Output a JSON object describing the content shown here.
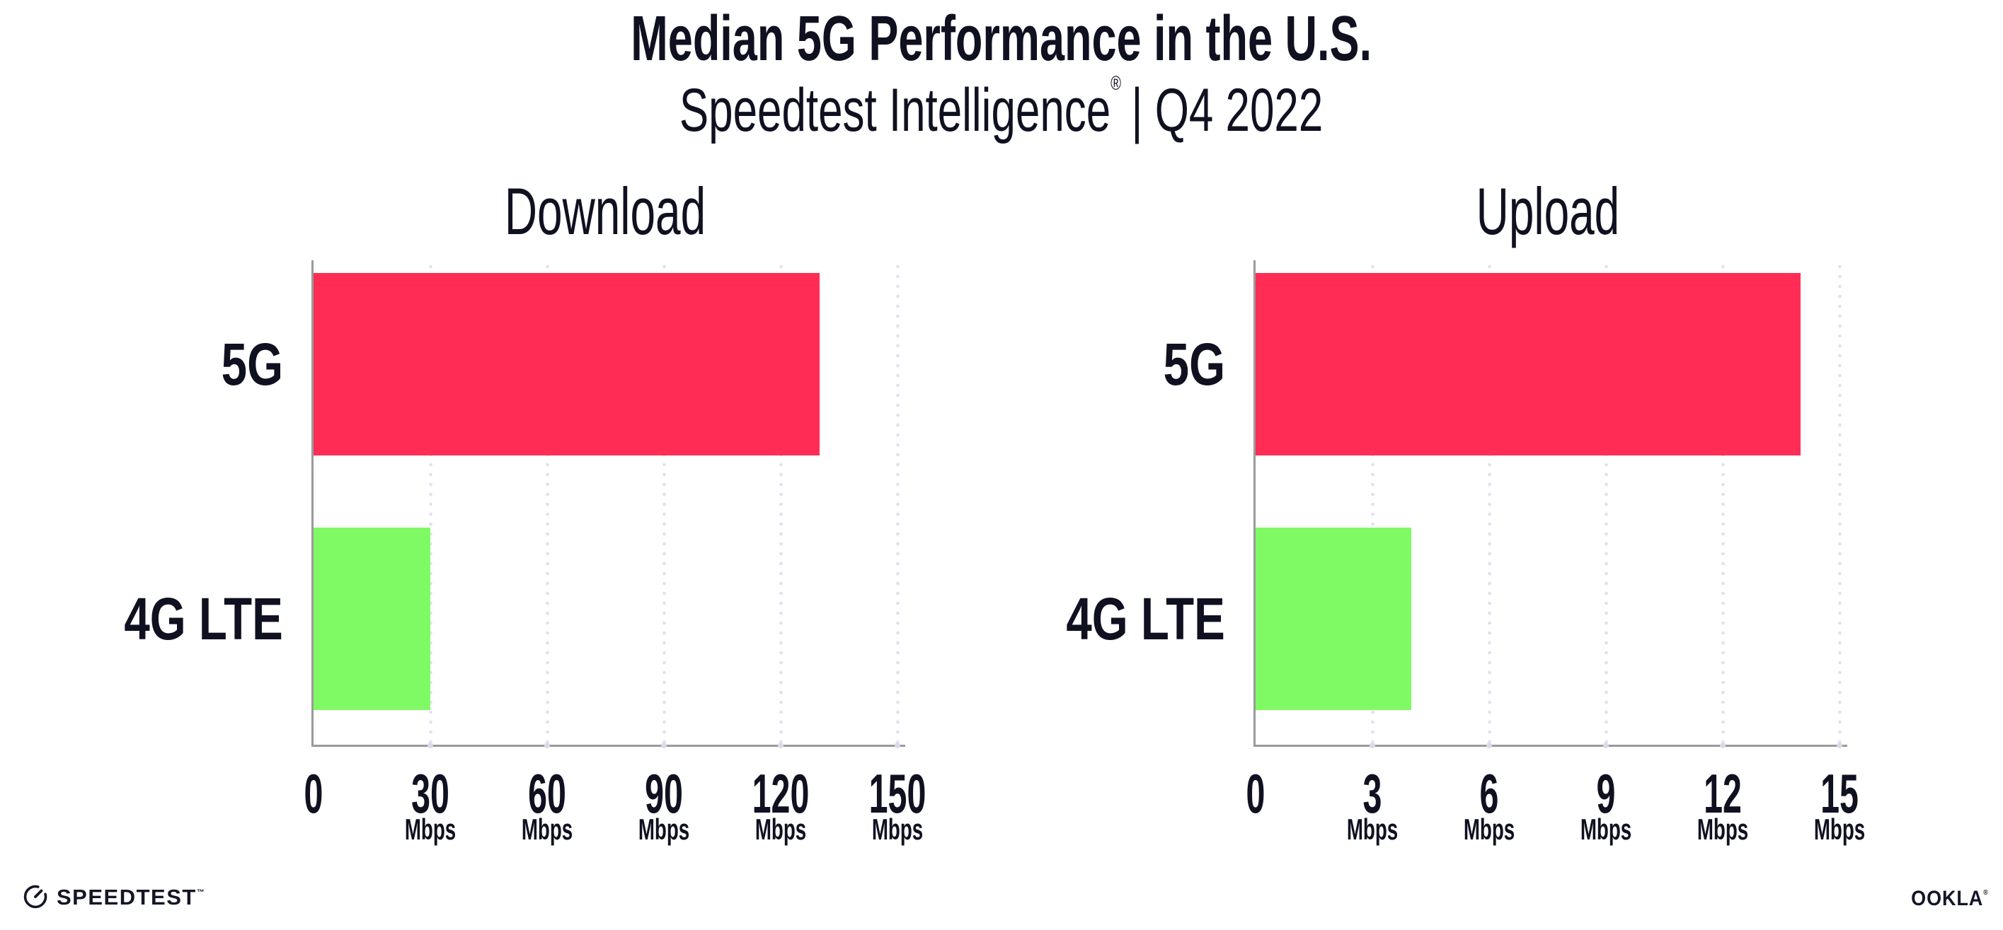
{
  "header": {
    "title": "Median 5G Performance in the U.S.",
    "subtitle_brand": "Speedtest Intelligence",
    "subtitle_reg": "®",
    "subtitle_rest": "| Q4 2022"
  },
  "footer": {
    "speedtest_wordmark": "SPEEDTEST",
    "speedtest_tm": "™",
    "ookla_wordmark": "OOKLA",
    "ookla_reg": "®"
  },
  "colors": {
    "bar_5g": "#ff2d55",
    "bar_4g_lte": "#7ffa64",
    "spine": "#9a9a9a",
    "grid_dot": "#e3e1ed",
    "text": "#0f1120"
  },
  "chart_data": [
    {
      "type": "bar",
      "orientation": "horizontal",
      "title": "Download",
      "categories": [
        "5G",
        "4G LTE"
      ],
      "values": [
        130,
        30
      ],
      "bar_colors": [
        "#ff2d55",
        "#7ffa64"
      ],
      "xlim": [
        0,
        150
      ],
      "xticks": [
        0,
        30,
        60,
        90,
        120,
        150
      ],
      "tick_unit_label": "Mbps",
      "unit": "Mbps",
      "grid": "dotted-vertical",
      "legend": "none"
    },
    {
      "type": "bar",
      "orientation": "horizontal",
      "title": "Upload",
      "categories": [
        "5G",
        "4G LTE"
      ],
      "values": [
        14,
        4
      ],
      "bar_colors": [
        "#ff2d55",
        "#7ffa64"
      ],
      "xlim": [
        0,
        15
      ],
      "xticks": [
        0,
        3,
        6,
        9,
        12,
        15
      ],
      "tick_unit_label": "Mbps",
      "unit": "Mbps",
      "grid": "dotted-vertical",
      "legend": "none"
    }
  ]
}
